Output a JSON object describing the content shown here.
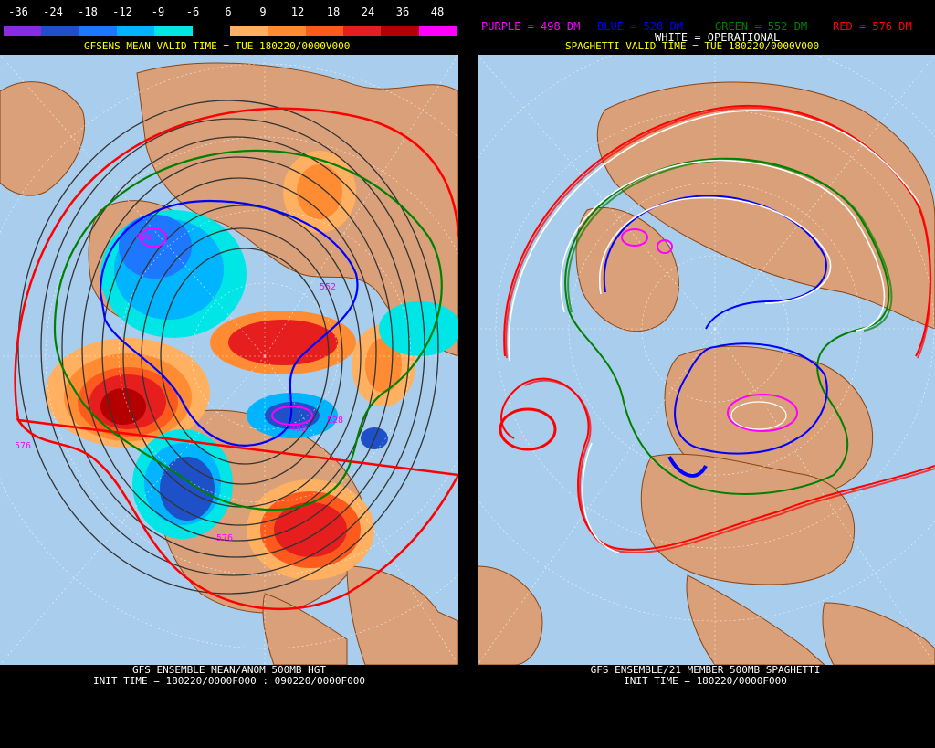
{
  "left": {
    "legend_values": [
      "-36",
      "-24",
      "-18",
      "-12",
      "-9",
      "-6",
      "6",
      "9",
      "12",
      "18",
      "24",
      "36",
      "48"
    ],
    "legend_colors": [
      "#8a2be2",
      "#1e50c8",
      "#1e78ff",
      "#00b4ff",
      "#00e6e6",
      "#000000",
      "#ffb060",
      "#ff8c32",
      "#ff5a1e",
      "#e61e1e",
      "#b40000",
      "#ff00ff"
    ],
    "valid_time": "GFSENS MEAN VALID TIME = TUE 180220/0000V000",
    "footer_line1": "GFS ENSEMBLE MEAN/ANOM 500MB HGT",
    "footer_line2": "INIT TIME = 180220/0000F000 : 090220/0000F000",
    "contour_labels": {
      "l498": "498",
      "l576a": "576",
      "l576b": "576",
      "l528a": "528",
      "l498b": "498",
      "l552": "552"
    }
  },
  "right": {
    "header": {
      "purple": "PURPLE = 498 DM",
      "blue": "BLUE = 528 DM",
      "green": "GREEN = 552 DM",
      "red": "RED = 576 DM",
      "white": "WHITE = OPERATIONAL"
    },
    "valid_time": "SPAGHETTI VALID TIME = TUE 180220/0000V000",
    "footer_line1": "GFS ENSEMBLE/21 MEMBER 500MB SPAGHETTI",
    "footer_line2": "INIT TIME = 180220/0000F000"
  },
  "colors": {
    "ocean": "#a9cdec",
    "land": "#d9a07a",
    "border": "#8b4513",
    "purple": "#ff00ff",
    "blue": "#0000ff",
    "green": "#008000",
    "red": "#ff0000",
    "white": "#ffffff"
  }
}
